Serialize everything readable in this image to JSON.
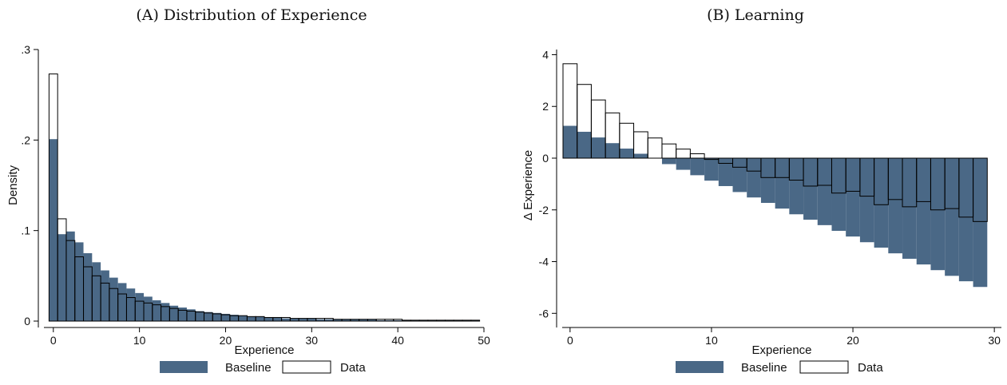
{
  "colors": {
    "baseline": "#4a6886",
    "data_fill": "#ffffff",
    "outline": "#000000"
  },
  "chart_data": [
    {
      "title": "(A)  Distribution of Experience",
      "type": "bar",
      "xlabel": "Experience",
      "ylabel": "Density",
      "xlim": [
        -1,
        50
      ],
      "ylim": [
        0,
        0.3
      ],
      "xticks": [
        0,
        10,
        20,
        30,
        40,
        50
      ],
      "yticks": [
        0,
        0.1,
        0.2,
        0.3
      ],
      "ytick_labels": [
        "0",
        ".1",
        ".2",
        ".3"
      ],
      "bin_width": 1,
      "grid": false,
      "legend_position": "bottom",
      "x": [
        0,
        1,
        2,
        3,
        4,
        5,
        6,
        7,
        8,
        9,
        10,
        11,
        12,
        13,
        14,
        15,
        16,
        17,
        18,
        19,
        20,
        21,
        22,
        23,
        24,
        25,
        26,
        27,
        28,
        29,
        30,
        31,
        32,
        33,
        34,
        35,
        36,
        37,
        38,
        39,
        40,
        41,
        42,
        43,
        44,
        45,
        46,
        47,
        48,
        49
      ],
      "series": [
        {
          "name": "Baseline",
          "style": "filled",
          "values": [
            0.201,
            0.096,
            0.099,
            0.087,
            0.075,
            0.065,
            0.056,
            0.048,
            0.042,
            0.036,
            0.031,
            0.027,
            0.023,
            0.02,
            0.017,
            0.015,
            0.013,
            0.011,
            0.01,
            0.009,
            0.008,
            0.007,
            0.006,
            0.005,
            0.005,
            0.004,
            0.004,
            0.003,
            0.003,
            0.003,
            0.003,
            0.002,
            0.002,
            0.002,
            0.002,
            0.002,
            0.002,
            0.002,
            0.001,
            0.001,
            0.001,
            0.001,
            0.001,
            0.001,
            0.001,
            0.001,
            0.001,
            0.001,
            0.001,
            0.001
          ]
        },
        {
          "name": "Data",
          "style": "outline",
          "values": [
            0.273,
            0.113,
            0.089,
            0.071,
            0.06,
            0.05,
            0.042,
            0.036,
            0.03,
            0.026,
            0.022,
            0.02,
            0.018,
            0.016,
            0.014,
            0.012,
            0.011,
            0.01,
            0.009,
            0.008,
            0.007,
            0.006,
            0.006,
            0.005,
            0.005,
            0.004,
            0.004,
            0.004,
            0.003,
            0.003,
            0.003,
            0.003,
            0.003,
            0.002,
            0.002,
            0.002,
            0.002,
            0.002,
            0.002,
            0.002,
            0.002,
            0.001,
            0.001,
            0.001,
            0.001,
            0.001,
            0.001,
            0.001,
            0.001,
            0.001
          ]
        }
      ]
    },
    {
      "title": "(B)  Learning",
      "type": "bar",
      "xlabel": "Experience",
      "ylabel": "Δ Experience",
      "xlim": [
        -0.5,
        30.5
      ],
      "ylim": [
        -6.3,
        4.2
      ],
      "xticks": [
        0,
        10,
        20,
        30
      ],
      "yticks": [
        -6,
        -4,
        -2,
        0,
        2,
        4
      ],
      "ytick_labels": [
        "-6",
        "-4",
        "-2",
        "0",
        "2",
        "4"
      ],
      "bin_width": 1,
      "grid": false,
      "legend_position": "bottom",
      "x": [
        0,
        1,
        2,
        3,
        4,
        5,
        6,
        7,
        8,
        9,
        10,
        11,
        12,
        13,
        14,
        15,
        16,
        17,
        18,
        19,
        20,
        21,
        22,
        23,
        24,
        25,
        26,
        27,
        28,
        29
      ],
      "series": [
        {
          "name": "Baseline",
          "style": "filled",
          "values": [
            1.25,
            1.02,
            0.8,
            0.58,
            0.37,
            0.17,
            0.0,
            -0.23,
            -0.45,
            -0.66,
            -0.87,
            -1.08,
            -1.31,
            -1.52,
            -1.73,
            -1.95,
            -2.17,
            -2.38,
            -2.59,
            -2.81,
            -3.03,
            -3.25,
            -3.46,
            -3.68,
            -3.89,
            -4.11,
            -4.33,
            -4.55,
            -4.76,
            -4.98
          ]
        },
        {
          "name": "Data",
          "style": "outline",
          "values": [
            3.65,
            2.85,
            2.25,
            1.75,
            1.35,
            1.02,
            0.78,
            0.55,
            0.35,
            0.17,
            -0.05,
            -0.2,
            -0.35,
            -0.5,
            -0.75,
            -0.75,
            -0.85,
            -1.08,
            -1.05,
            -1.35,
            -1.28,
            -1.47,
            -1.8,
            -1.6,
            -1.88,
            -1.68,
            -2.0,
            -1.95,
            -2.28,
            -2.45
          ]
        }
      ]
    }
  ]
}
